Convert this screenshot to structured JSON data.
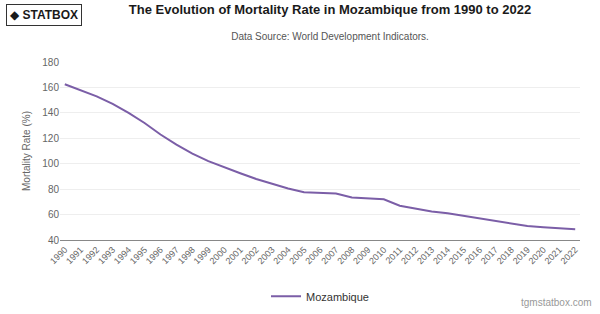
{
  "chart_data": {
    "type": "line",
    "title": "The Evolution of Mortality Rate in Mozambique from 1990 to 2022",
    "subtitle": "Data Source: World Development Indicators.",
    "ylabel": "Mortality Rate (%)",
    "x": [
      1990,
      1991,
      1992,
      1993,
      1994,
      1995,
      1996,
      1997,
      1998,
      1999,
      2000,
      2001,
      2002,
      2003,
      2004,
      2005,
      2006,
      2007,
      2008,
      2009,
      2010,
      2011,
      2012,
      2013,
      2014,
      2015,
      2016,
      2017,
      2018,
      2019,
      2020,
      2021,
      2022
    ],
    "series": [
      {
        "name": "Mozambique",
        "color": "#7B5EA7",
        "values": [
          162.5,
          158.0,
          153.0,
          147.0,
          140.0,
          132.0,
          123.0,
          115.0,
          108.0,
          102.0,
          97.0,
          92.5,
          88.0,
          84.0,
          80.5,
          77.5,
          77.0,
          76.5,
          73.5,
          72.5,
          72.0,
          67.0,
          64.5,
          62.5,
          61.0,
          59.0,
          57.0,
          54.5,
          52.5,
          51.0,
          50.0,
          49.5,
          48.5
        ]
      }
    ],
    "xlim": [
      1989.7,
      2022.3
    ],
    "xticks": [
      1990,
      1991,
      1992,
      1993,
      1994,
      1995,
      1996,
      1997,
      1998,
      1999,
      2000,
      2001,
      2002,
      2003,
      2004,
      2005,
      2006,
      2007,
      2008,
      2009,
      2010,
      2011,
      2012,
      2013,
      2014,
      2015,
      2016,
      2017,
      2018,
      2019,
      2020,
      2021,
      2022
    ],
    "ylim": [
      40,
      180
    ],
    "yticks": [
      40,
      60,
      80,
      100,
      120,
      140,
      160,
      180
    ],
    "grid": true,
    "legend": "bottom",
    "annotations": [
      "◆ STAT",
      "BOX",
      "tgmstatbox.com"
    ]
  }
}
